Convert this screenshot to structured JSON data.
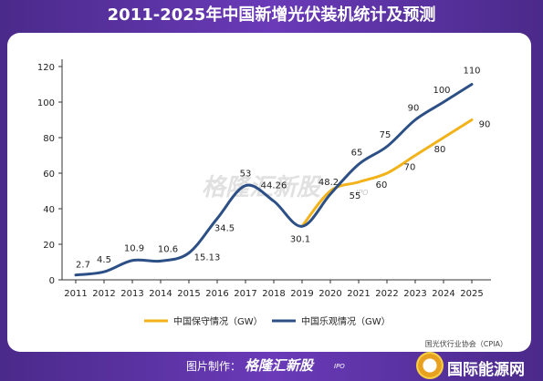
{
  "title": "2011-2025年中国新增光伏装机统计及预测",
  "footer": {
    "made_by_label": "图片制作：",
    "brand": "格隆汇新股",
    "brand_sub": "IPO"
  },
  "watermark": {
    "brand": "格隆汇新股",
    "brand_sub": "IPO"
  },
  "site_badge": {
    "text": "国际能源网"
  },
  "source_text": "国光伏行业协会（CPIA）",
  "colors": {
    "frame": "#5a32a0",
    "conservative": "#f2b21a",
    "optimistic": "#2c4f86",
    "axis": "#333333"
  },
  "chart_data": {
    "type": "line",
    "x": [
      "2011",
      "2012",
      "2013",
      "2014",
      "2015",
      "2016",
      "2017",
      "2018",
      "2019",
      "2020",
      "2021",
      "2022",
      "2023",
      "2024",
      "2025"
    ],
    "ylim": [
      0,
      120
    ],
    "yticks": [
      0,
      20,
      40,
      60,
      80,
      100,
      120
    ],
    "grid": false,
    "legend_position": "bottom",
    "series": [
      {
        "name": "中国保守情况（GW）",
        "x": [
          "2019",
          "2020",
          "2021",
          "2022",
          "2023",
          "2024",
          "2025"
        ],
        "values": [
          30.1,
          50,
          55,
          60,
          70,
          80,
          90
        ],
        "labels": [
          "",
          "",
          "55",
          "60",
          "70",
          "80",
          "90"
        ]
      },
      {
        "name": "中国乐观情况（GW）",
        "x": [
          "2011",
          "2012",
          "2013",
          "2014",
          "2015",
          "2016",
          "2017",
          "2018",
          "2019",
          "2020",
          "2021",
          "2022",
          "2023",
          "2024",
          "2025"
        ],
        "values": [
          2.7,
          4.5,
          10.9,
          10.6,
          15.13,
          34.5,
          53,
          44.26,
          30.1,
          48.2,
          65,
          75,
          90,
          100,
          110
        ],
        "labels": [
          "2.7",
          "4.5",
          "10.9",
          "10.6",
          "15.13",
          "34.5",
          "53",
          "44.26",
          "30.1",
          "48.2",
          "65",
          "75",
          "90",
          "100",
          "110"
        ]
      }
    ]
  }
}
